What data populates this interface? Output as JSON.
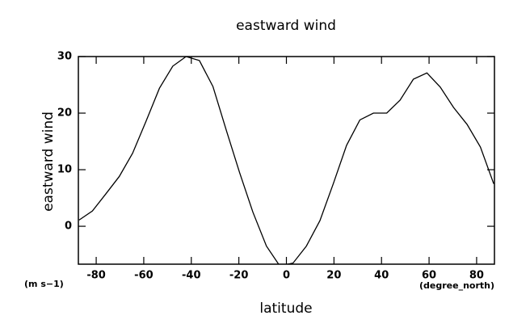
{
  "chart_data": {
    "type": "line",
    "title": "eastward wind",
    "xlabel": "latitude",
    "ylabel": "eastward wind",
    "yunits": "(m s−1)",
    "xunits": "(degree_north)",
    "x": [
      -87.2,
      -81.6,
      -76.0,
      -70.3,
      -64.7,
      -59.1,
      -53.4,
      -47.8,
      -42.2,
      -36.6,
      -30.9,
      -25.3,
      -19.7,
      -14.1,
      -8.4,
      -2.8,
      2.8,
      8.4,
      14.1,
      19.7,
      25.3,
      30.9,
      36.6,
      42.2,
      47.8,
      53.4,
      59.1,
      64.7,
      70.3,
      76.0,
      81.6,
      87.2
    ],
    "values": [
      1.1,
      2.7,
      5.7,
      8.8,
      12.9,
      18.5,
      24.4,
      28.3,
      30,
      29.3,
      24.7,
      17,
      9.5,
      2.5,
      -3.5,
      -7,
      -6.5,
      -3.5,
      1,
      7.5,
      14.3,
      18.8,
      20,
      20,
      22.3,
      26,
      27.1,
      24.6,
      21,
      18,
      14,
      7.5
    ],
    "color": "#000000",
    "xlim": [
      -87.5,
      87.5
    ],
    "xticks": [
      -80,
      -60,
      -40,
      -20,
      0,
      20,
      40,
      60,
      80
    ],
    "ylim": [
      -6.7,
      30
    ],
    "yticks": [
      0,
      10,
      20,
      30
    ]
  }
}
